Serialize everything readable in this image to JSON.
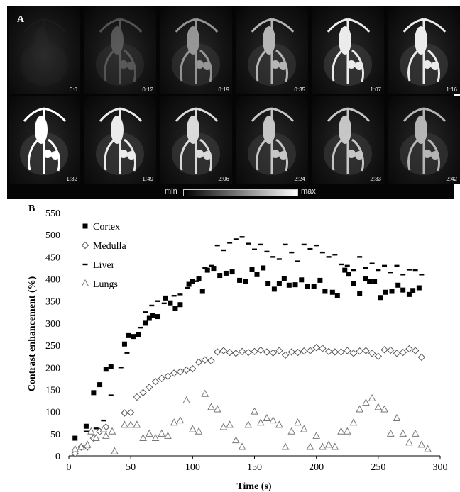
{
  "panel_a": {
    "label": "A",
    "timestamps": [
      "0:0",
      "0:12",
      "0:19",
      "0:35",
      "1:07",
      "1:16",
      "1:32",
      "1:49",
      "2:06",
      "2:24",
      "2:33",
      "2:42"
    ],
    "intensity": [
      0.05,
      0.45,
      0.7,
      0.8,
      0.95,
      0.95,
      1.0,
      0.95,
      0.9,
      0.85,
      0.85,
      0.8
    ],
    "colorbar": {
      "min_label": "min",
      "max_label": "max"
    }
  },
  "panel_b": {
    "label": "B"
  },
  "chart_data": {
    "type": "scatter",
    "xlabel": "Time (s)",
    "ylabel": "Contrast enhancement (%)",
    "xlim": [
      0,
      300
    ],
    "ylim": [
      0,
      550
    ],
    "xticks": [
      0,
      50,
      100,
      150,
      200,
      250,
      300
    ],
    "yticks": [
      0,
      50,
      100,
      150,
      200,
      250,
      300,
      350,
      400,
      450,
      500,
      550
    ],
    "legend_position": "top-left",
    "series": [
      {
        "name": "Cortex",
        "marker": "square",
        "points": [
          [
            5,
            40
          ],
          [
            14,
            67
          ],
          [
            20,
            143
          ],
          [
            25,
            161
          ],
          [
            30,
            196
          ],
          [
            34,
            202
          ],
          [
            45,
            253
          ],
          [
            48,
            272
          ],
          [
            52,
            270
          ],
          [
            56,
            274
          ],
          [
            62,
            300
          ],
          [
            65,
            311
          ],
          [
            68,
            318
          ],
          [
            72,
            315
          ],
          [
            78,
            357
          ],
          [
            82,
            346
          ],
          [
            86,
            333
          ],
          [
            90,
            342
          ],
          [
            97,
            388
          ],
          [
            100,
            395
          ],
          [
            105,
            400
          ],
          [
            108,
            372
          ],
          [
            112,
            420
          ],
          [
            117,
            424
          ],
          [
            122,
            408
          ],
          [
            127,
            413
          ],
          [
            132,
            416
          ],
          [
            138,
            397
          ],
          [
            143,
            395
          ],
          [
            148,
            421
          ],
          [
            152,
            410
          ],
          [
            157,
            425
          ],
          [
            161,
            390
          ],
          [
            166,
            377
          ],
          [
            170,
            390
          ],
          [
            174,
            401
          ],
          [
            178,
            386
          ],
          [
            183,
            387
          ],
          [
            188,
            398
          ],
          [
            193,
            383
          ],
          [
            198,
            384
          ],
          [
            203,
            397
          ],
          [
            207,
            372
          ],
          [
            213,
            370
          ],
          [
            217,
            362
          ],
          [
            223,
            420
          ],
          [
            226,
            411
          ],
          [
            230,
            390
          ],
          [
            235,
            368
          ],
          [
            240,
            400
          ],
          [
            243,
            395
          ],
          [
            247,
            394
          ],
          [
            252,
            358
          ],
          [
            256,
            370
          ],
          [
            261,
            372
          ],
          [
            266,
            386
          ],
          [
            270,
            375
          ],
          [
            275,
            365
          ],
          [
            278,
            374
          ],
          [
            283,
            380
          ]
        ]
      },
      {
        "name": "Medulla",
        "marker": "diamond",
        "points": [
          [
            5,
            5
          ],
          [
            10,
            20
          ],
          [
            15,
            20
          ],
          [
            20,
            40
          ],
          [
            25,
            55
          ],
          [
            30,
            65
          ],
          [
            45,
            97
          ],
          [
            50,
            98
          ],
          [
            55,
            133
          ],
          [
            60,
            143
          ],
          [
            65,
            155
          ],
          [
            70,
            168
          ],
          [
            75,
            175
          ],
          [
            80,
            180
          ],
          [
            85,
            187
          ],
          [
            90,
            190
          ],
          [
            95,
            194
          ],
          [
            100,
            197
          ],
          [
            105,
            212
          ],
          [
            110,
            217
          ],
          [
            115,
            215
          ],
          [
            120,
            235
          ],
          [
            125,
            238
          ],
          [
            130,
            234
          ],
          [
            135,
            232
          ],
          [
            140,
            236
          ],
          [
            145,
            234
          ],
          [
            150,
            236
          ],
          [
            155,
            239
          ],
          [
            160,
            235
          ],
          [
            165,
            233
          ],
          [
            170,
            238
          ],
          [
            175,
            228
          ],
          [
            180,
            235
          ],
          [
            185,
            234
          ],
          [
            190,
            237
          ],
          [
            195,
            238
          ],
          [
            200,
            245
          ],
          [
            205,
            243
          ],
          [
            210,
            236
          ],
          [
            215,
            235
          ],
          [
            220,
            235
          ],
          [
            225,
            238
          ],
          [
            230,
            232
          ],
          [
            235,
            237
          ],
          [
            240,
            238
          ],
          [
            245,
            232
          ],
          [
            250,
            225
          ],
          [
            255,
            240
          ],
          [
            260,
            239
          ],
          [
            265,
            232
          ],
          [
            270,
            234
          ],
          [
            275,
            242
          ],
          [
            280,
            238
          ],
          [
            285,
            223
          ]
        ]
      },
      {
        "name": "Liver",
        "marker": "dash",
        "points": [
          [
            14,
            55
          ],
          [
            22,
            62
          ],
          [
            28,
            80
          ],
          [
            34,
            137
          ],
          [
            42,
            200
          ],
          [
            47,
            233
          ],
          [
            52,
            270
          ],
          [
            58,
            290
          ],
          [
            62,
            325
          ],
          [
            67,
            340
          ],
          [
            72,
            350
          ],
          [
            77,
            345
          ],
          [
            85,
            362
          ],
          [
            90,
            365
          ],
          [
            96,
            380
          ],
          [
            103,
            395
          ],
          [
            110,
            425
          ],
          [
            115,
            430
          ],
          [
            120,
            476
          ],
          [
            125,
            465
          ],
          [
            130,
            482
          ],
          [
            135,
            490
          ],
          [
            140,
            495
          ],
          [
            145,
            480
          ],
          [
            150,
            467
          ],
          [
            155,
            478
          ],
          [
            160,
            462
          ],
          [
            165,
            450
          ],
          [
            170,
            445
          ],
          [
            175,
            478
          ],
          [
            180,
            460
          ],
          [
            185,
            440
          ],
          [
            190,
            478
          ],
          [
            195,
            468
          ],
          [
            200,
            476
          ],
          [
            205,
            460
          ],
          [
            210,
            450
          ],
          [
            215,
            455
          ],
          [
            220,
            433
          ],
          [
            225,
            430
          ],
          [
            230,
            420
          ],
          [
            235,
            450
          ],
          [
            240,
            425
          ],
          [
            245,
            435
          ],
          [
            250,
            420
          ],
          [
            255,
            430
          ],
          [
            260,
            415
          ],
          [
            265,
            430
          ],
          [
            270,
            410
          ],
          [
            275,
            421
          ],
          [
            280,
            420
          ],
          [
            285,
            410
          ]
        ]
      },
      {
        "name": "Lungs",
        "marker": "triangle",
        "points": [
          [
            5,
            15
          ],
          [
            10,
            20
          ],
          [
            15,
            25
          ],
          [
            18,
            55
          ],
          [
            22,
            40
          ],
          [
            28,
            60
          ],
          [
            30,
            45
          ],
          [
            35,
            55
          ],
          [
            37,
            10
          ],
          [
            45,
            70
          ],
          [
            50,
            70
          ],
          [
            55,
            70
          ],
          [
            60,
            40
          ],
          [
            65,
            50
          ],
          [
            70,
            40
          ],
          [
            75,
            50
          ],
          [
            80,
            45
          ],
          [
            85,
            75
          ],
          [
            90,
            80
          ],
          [
            95,
            125
          ],
          [
            100,
            60
          ],
          [
            105,
            55
          ],
          [
            110,
            140
          ],
          [
            115,
            110
          ],
          [
            120,
            105
          ],
          [
            125,
            65
          ],
          [
            130,
            70
          ],
          [
            135,
            35
          ],
          [
            140,
            20
          ],
          [
            145,
            70
          ],
          [
            150,
            100
          ],
          [
            155,
            75
          ],
          [
            160,
            85
          ],
          [
            165,
            80
          ],
          [
            170,
            70
          ],
          [
            175,
            20
          ],
          [
            180,
            55
          ],
          [
            185,
            75
          ],
          [
            190,
            60
          ],
          [
            195,
            20
          ],
          [
            200,
            45
          ],
          [
            205,
            20
          ],
          [
            210,
            25
          ],
          [
            215,
            20
          ],
          [
            220,
            55
          ],
          [
            225,
            55
          ],
          [
            230,
            75
          ],
          [
            235,
            105
          ],
          [
            240,
            120
          ],
          [
            245,
            130
          ],
          [
            250,
            110
          ],
          [
            255,
            105
          ],
          [
            260,
            50
          ],
          [
            265,
            85
          ],
          [
            270,
            50
          ],
          [
            275,
            30
          ],
          [
            280,
            50
          ],
          [
            285,
            25
          ],
          [
            290,
            15
          ]
        ]
      }
    ]
  }
}
